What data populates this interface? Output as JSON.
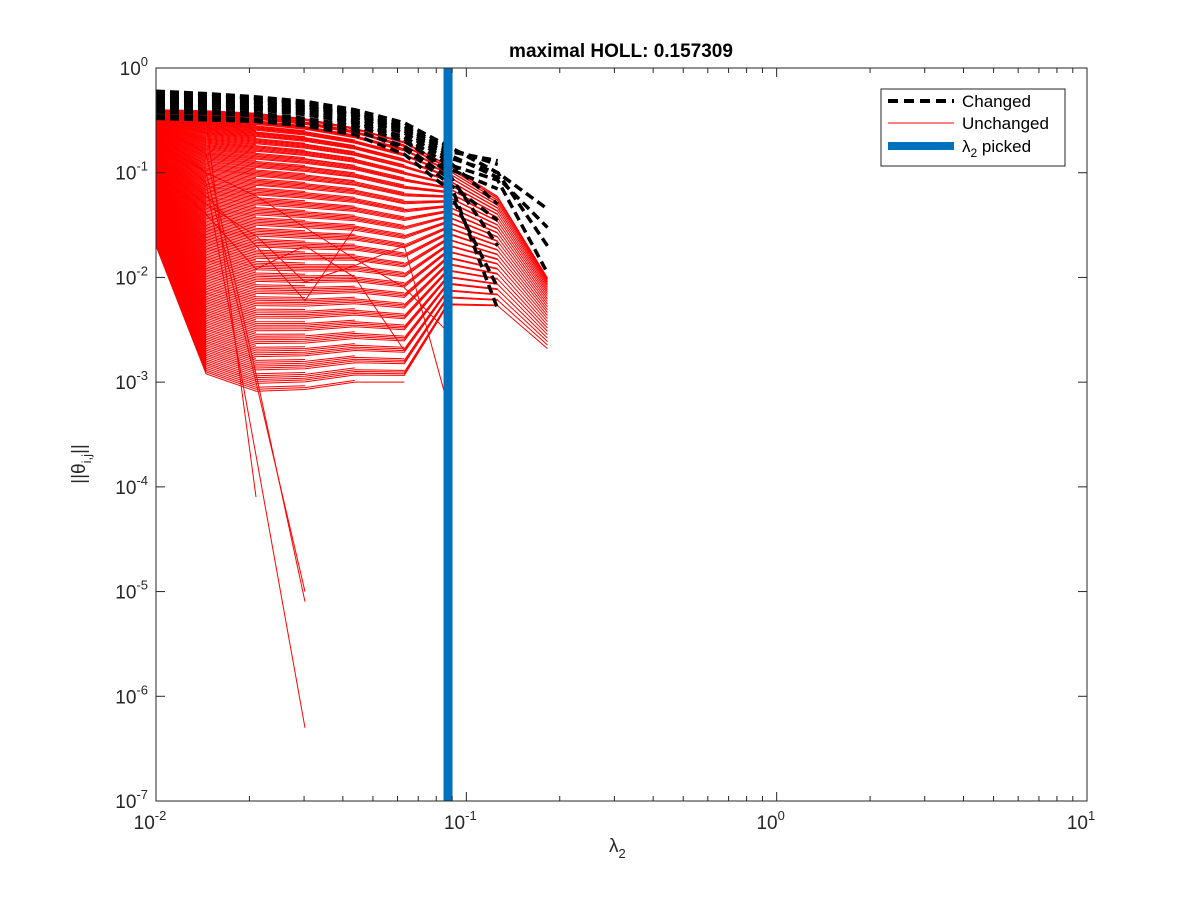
{
  "chart_data": {
    "type": "line",
    "title": "maximal HOLL: 0.157309",
    "xlabel": {
      "symbol": "λ",
      "sub": "2"
    },
    "ylabel": {
      "prefix": "||θ",
      "sub": "i,j",
      "suffix": "||"
    },
    "xscale": "log",
    "yscale": "log",
    "xlim": [
      0.01,
      10
    ],
    "ylim": [
      1e-07,
      1
    ],
    "grid": false,
    "legend_location": "top-right",
    "x_ticks": [
      {
        "base": "10",
        "exp": "-2",
        "value": 0.01
      },
      {
        "base": "10",
        "exp": "-1",
        "value": 0.1
      },
      {
        "base": "10",
        "exp": "0",
        "value": 1
      },
      {
        "base": "10",
        "exp": "1",
        "value": 10
      }
    ],
    "y_ticks": [
      {
        "base": "10",
        "exp": "0",
        "value": 1
      },
      {
        "base": "10",
        "exp": "-1",
        "value": 0.1
      },
      {
        "base": "10",
        "exp": "-2",
        "value": 0.01
      },
      {
        "base": "10",
        "exp": "-3",
        "value": 0.001
      },
      {
        "base": "10",
        "exp": "-4",
        "value": 0.0001
      },
      {
        "base": "10",
        "exp": "-5",
        "value": 1e-05
      },
      {
        "base": "10",
        "exp": "-6",
        "value": 1e-06
      },
      {
        "base": "10",
        "exp": "-7",
        "value": 1e-07
      }
    ],
    "x_grid": [
      0.01,
      0.0145,
      0.021,
      0.0302,
      0.0437,
      0.0631,
      0.0873,
      0.1262,
      0.1826
    ],
    "picked_x": 0.0873,
    "colors": {
      "changed": "#000000",
      "unchanged": "#ff0000",
      "picked": "#0072bd"
    },
    "legend": [
      {
        "label": "Changed",
        "style": "dashed",
        "color": "#000000"
      },
      {
        "label": "Unchanged",
        "style": "solid",
        "color": "#ff0000"
      },
      {
        "label_symbol": "λ",
        "label_sub": "2",
        "label_suffix": " picked",
        "style": "thick",
        "color": "#0072bd"
      }
    ],
    "changed_series": [
      [
        0.6,
        0.57,
        0.53,
        0.48,
        0.4,
        0.3,
        0.18,
        0.1,
        0.045
      ],
      [
        0.55,
        0.53,
        0.5,
        0.45,
        0.37,
        0.27,
        0.16,
        0.13
      ],
      [
        0.5,
        0.48,
        0.46,
        0.42,
        0.35,
        0.25,
        0.14,
        0.1,
        0.02
      ],
      [
        0.45,
        0.44,
        0.42,
        0.38,
        0.31,
        0.22,
        0.12,
        0.085,
        0.011
      ],
      [
        0.4,
        0.39,
        0.37,
        0.33,
        0.28,
        0.2,
        0.11,
        0.07
      ],
      [
        0.35,
        0.34,
        0.32,
        0.3,
        0.25,
        0.18,
        0.09,
        0.005
      ],
      [
        0.58,
        0.56,
        0.51,
        0.46,
        0.38,
        0.28,
        0.17,
        0.12
      ],
      [
        0.52,
        0.5,
        0.47,
        0.43,
        0.36,
        0.26,
        0.15,
        0.09,
        0.03
      ],
      [
        0.47,
        0.46,
        0.43,
        0.4,
        0.33,
        0.24,
        0.13,
        0.05
      ],
      [
        0.43,
        0.42,
        0.4,
        0.36,
        0.3,
        0.21,
        0.1,
        0.02
      ],
      [
        0.38,
        0.37,
        0.35,
        0.32,
        0.26,
        0.17,
        0.08,
        0.035
      ],
      [
        0.33,
        0.32,
        0.31,
        0.28,
        0.23,
        0.15,
        0.07,
        0.008
      ]
    ],
    "unchanged_envelope": {
      "max": [
        0.4,
        0.39,
        0.37,
        0.33,
        0.27,
        0.2,
        0.12,
        0.06,
        0.01
      ],
      "min": [
        0.02,
        0.0012,
        0.00082,
        0.00085,
        0.001,
        0.001,
        0.005,
        0.005,
        0.002
      ]
    },
    "unchanged_callouts": [
      [
        0.4,
        0.3,
        8e-05
      ],
      [
        0.3,
        0.15,
        0.0012,
        8e-06
      ],
      [
        0.2,
        0.08,
        0.0002,
        5e-07
      ],
      [
        0.25,
        0.1,
        0.001,
        1e-05
      ],
      [
        0.15,
        0.06,
        0.02,
        0.006,
        0.03
      ],
      [
        0.1,
        0.04,
        0.012,
        0.02,
        0.01,
        0.002
      ],
      [
        0.2,
        0.1,
        0.06,
        0.03,
        0.015,
        0.008,
        0.003
      ],
      [
        0.12,
        0.05,
        0.025,
        0.009,
        0.013,
        0.02,
        0.0006
      ]
    ]
  }
}
